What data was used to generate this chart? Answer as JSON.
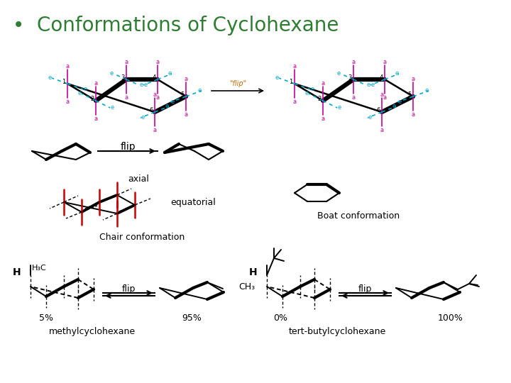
{
  "title": "Conformations of Cyclohexane",
  "title_color": "#2e7d32",
  "title_fontsize": 20,
  "bg_color": "#ffffff",
  "text_color": "#000000",
  "axial_color": "#cc0000",
  "equatorial_color": "#000000",
  "bond_color": "#000000",
  "a_label_color": "#cc0099",
  "e_label_color": "#00aacc",
  "flip_text": "flip",
  "flip_text2": "\"flip\"",
  "chair_label": "Chair conformation",
  "boat_label": "Boat conformation",
  "axial_label": "axial",
  "equatorial_label": "equatorial",
  "methyl_label": "methylcyclohexane",
  "tbutyl_label": "tert-butylcyclohexane",
  "pct_5": "5%",
  "pct_95": "95%",
  "pct_0": "0%",
  "pct_100": "100%",
  "ch3_label": "CH₃",
  "h_label": "H",
  "h3c_label": "H₃C"
}
